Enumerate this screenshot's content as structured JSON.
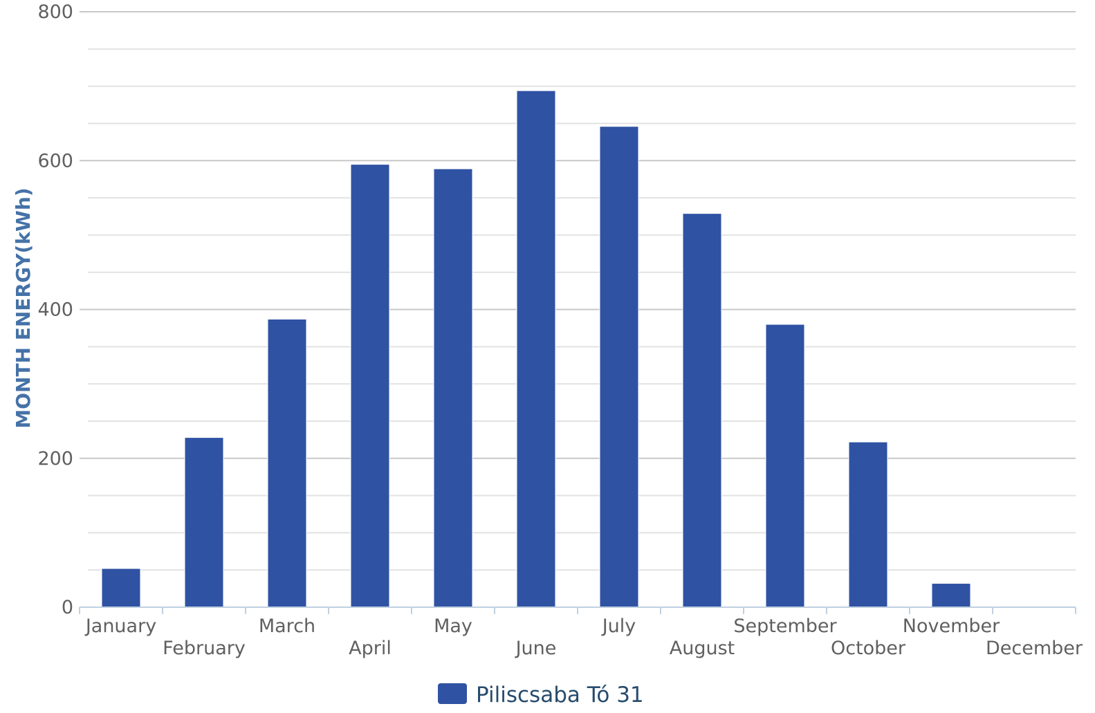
{
  "chart_data": {
    "type": "bar",
    "categories": [
      "January",
      "February",
      "March",
      "April",
      "May",
      "June",
      "July",
      "August",
      "September",
      "October",
      "November",
      "December"
    ],
    "series": [
      {
        "name": "Piliscsaba Tó 31",
        "color": "#2f52a3",
        "values": [
          52,
          228,
          387,
          595,
          589,
          694,
          646,
          529,
          380,
          222,
          32,
          0
        ]
      }
    ],
    "ylabel": "MONTH ENERGY(kWh)",
    "xlabel": "",
    "ylim": [
      0,
      800
    ],
    "yticks": [
      0,
      200,
      400,
      600,
      800
    ],
    "minor_gridlines": true,
    "legend_position": "bottom-center"
  }
}
